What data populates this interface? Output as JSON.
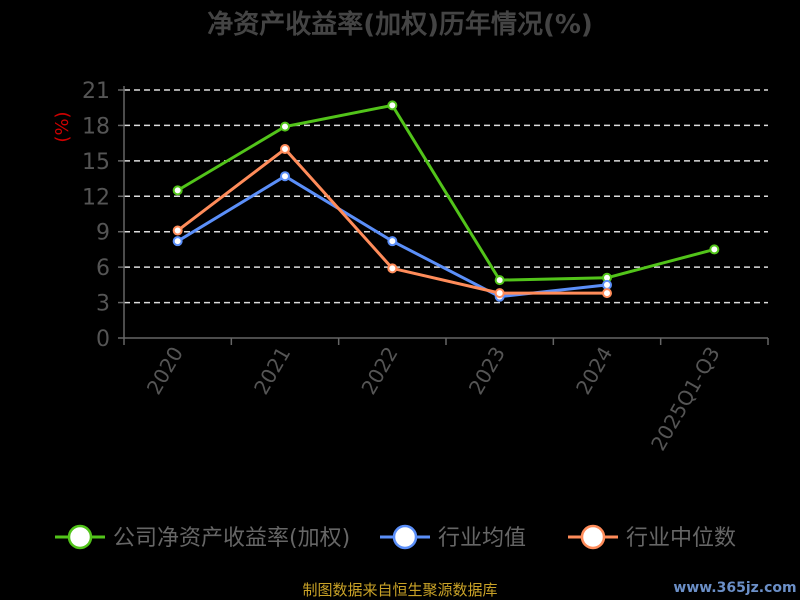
{
  "chart_data": {
    "type": "line",
    "title": "净资产收益率(加权)历年情况(%)",
    "ylabel": "(%)",
    "categories": [
      "2020",
      "2021",
      "2022",
      "2023",
      "2024",
      "2025Q1-Q3"
    ],
    "yticks": [
      0,
      3,
      6,
      9,
      12,
      15,
      18,
      21
    ],
    "ylim": [
      0,
      21
    ],
    "grid": true,
    "legend_position": "bottom",
    "series": [
      {
        "name": "公司净资产收益率(加权)",
        "color": "#52c41a",
        "values": [
          12.5,
          17.9,
          19.7,
          4.9,
          5.1,
          7.5
        ]
      },
      {
        "name": "行业均值",
        "color": "#5b8ff9",
        "values": [
          8.2,
          13.7,
          8.2,
          3.5,
          4.5,
          null
        ]
      },
      {
        "name": "行业中位数",
        "color": "#ff8c5a",
        "values": [
          9.1,
          16.0,
          5.9,
          3.8,
          3.8,
          null
        ]
      }
    ]
  },
  "footer": {
    "source": "制图数据来自恒生聚源数据库"
  },
  "watermark": "www.365jz.com"
}
